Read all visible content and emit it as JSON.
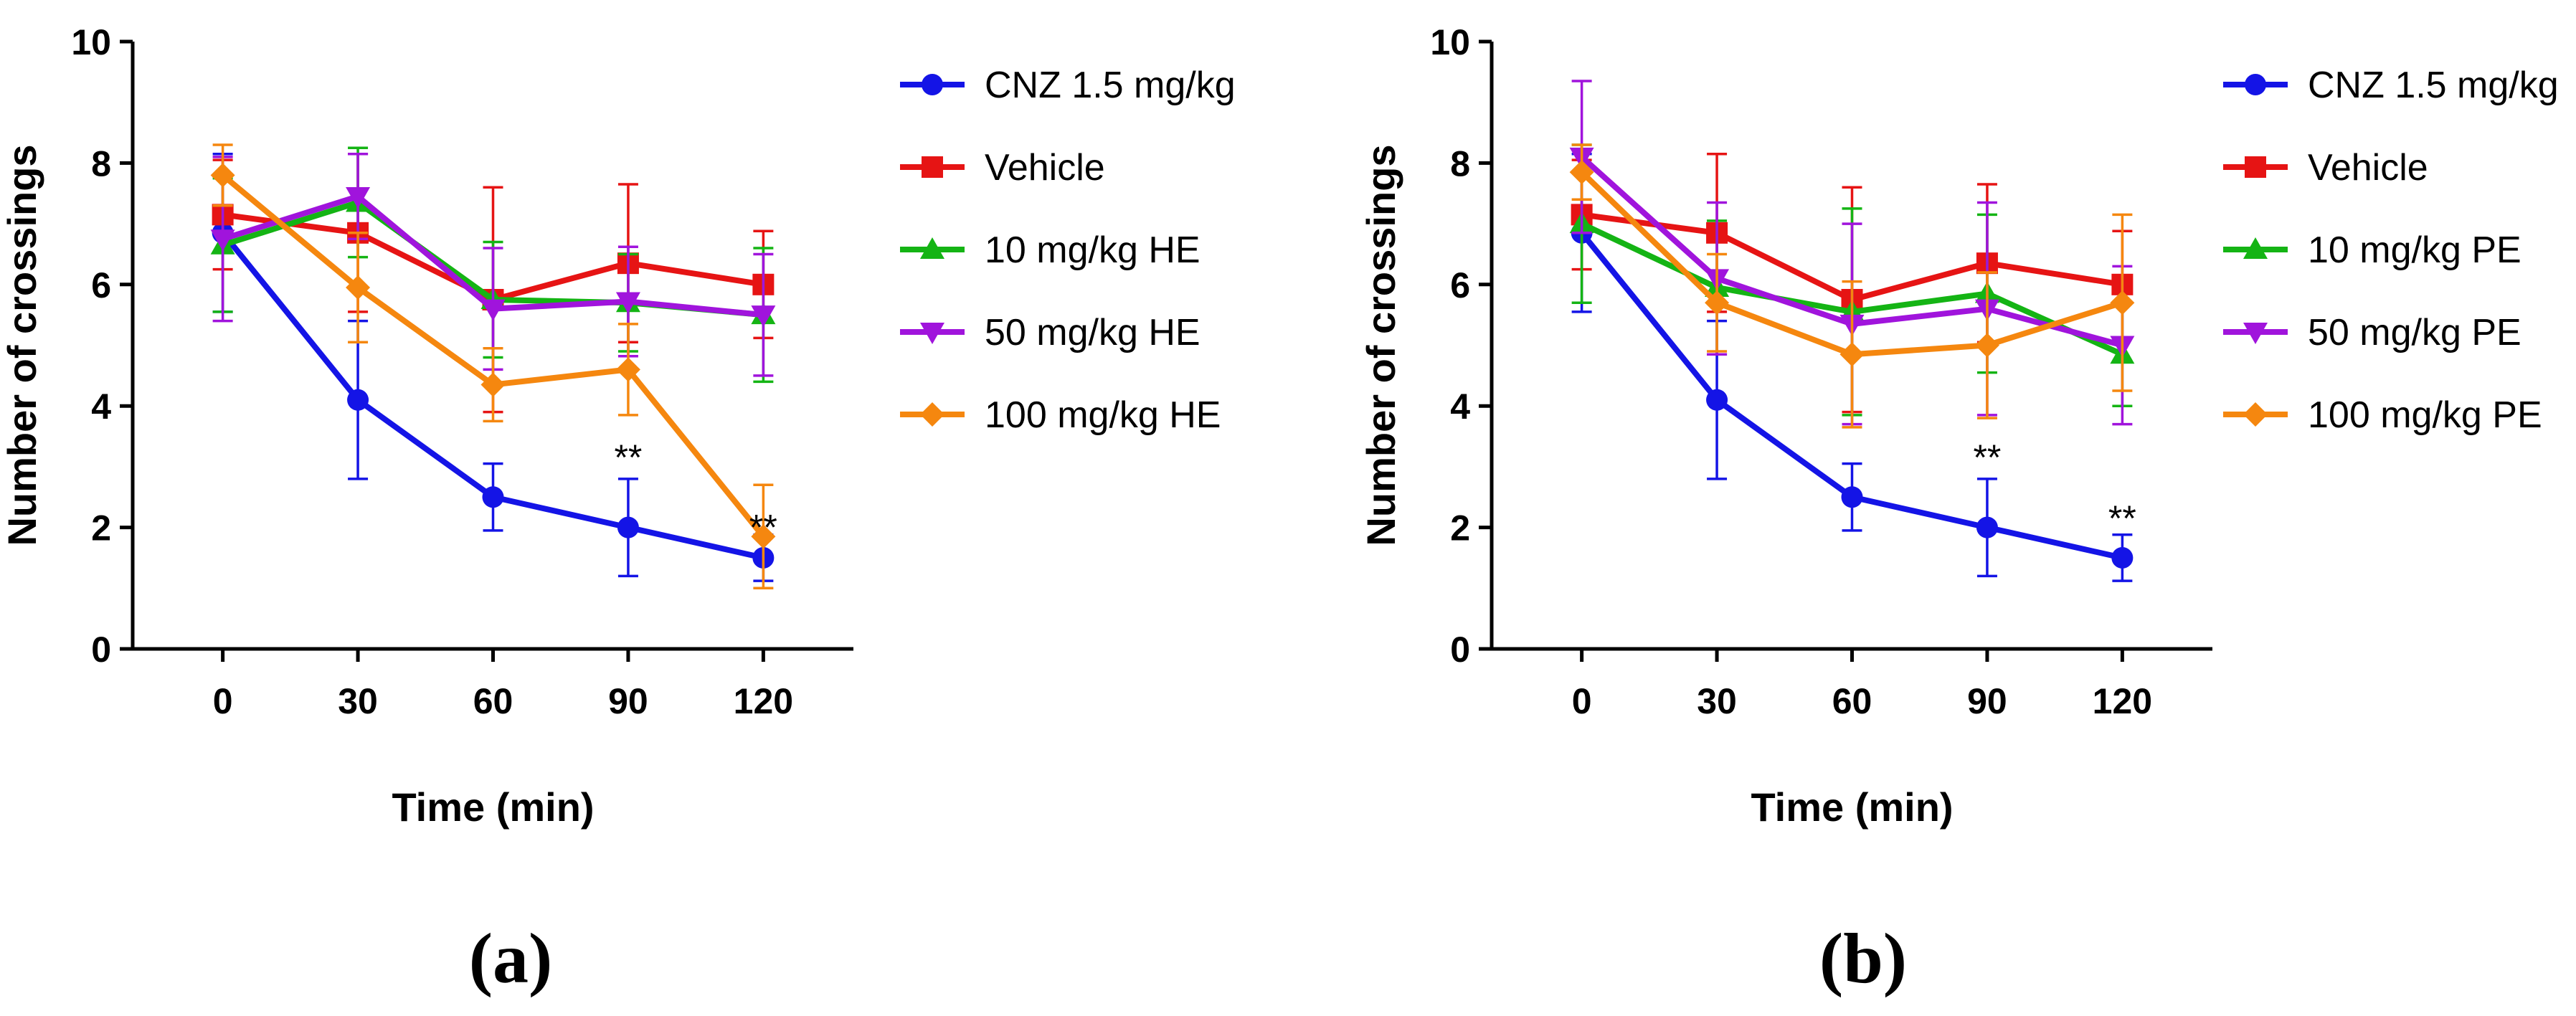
{
  "figure": {
    "panels": [
      {
        "label": "(a)"
      },
      {
        "label": "(b)"
      }
    ]
  },
  "chart_data": [
    {
      "type": "line",
      "panel_label": "(a)",
      "title": "",
      "xlabel": "Time (min)",
      "ylabel": "Number of crossings",
      "x": [
        0,
        30,
        60,
        90,
        120
      ],
      "x_ticks": [
        "0",
        "30",
        "60",
        "90",
        "120"
      ],
      "xlim": [
        -20,
        140
      ],
      "ylim": [
        0,
        10
      ],
      "y_ticks": [
        "0",
        "2",
        "4",
        "6",
        "8",
        "10"
      ],
      "grid": false,
      "legend": "right",
      "series": [
        {
          "name": "CNZ 1.5 mg/kg",
          "color": "#1414e6",
          "marker": "circle",
          "values": [
            6.85,
            4.1,
            2.5,
            2.0,
            1.5
          ],
          "errors": [
            1.3,
            1.3,
            0.55,
            0.8,
            0.38
          ]
        },
        {
          "name": "Vehicle",
          "color": "#e61414",
          "marker": "square",
          "values": [
            7.15,
            6.85,
            5.75,
            6.35,
            6.0
          ],
          "errors": [
            0.9,
            1.3,
            1.85,
            1.3,
            0.88
          ]
        },
        {
          "name": "10 mg/kg HE",
          "color": "#14b414",
          "marker": "triangle-up",
          "values": [
            6.65,
            7.35,
            5.75,
            5.7,
            5.5
          ],
          "errors": [
            1.1,
            0.9,
            0.95,
            0.8,
            1.1
          ]
        },
        {
          "name": "50 mg/kg HE",
          "color": "#a014dc",
          "marker": "triangle-down",
          "values": [
            6.75,
            7.45,
            5.6,
            5.72,
            5.5
          ],
          "errors": [
            1.35,
            0.7,
            1.0,
            0.9,
            1.0
          ]
        },
        {
          "name": "100 mg/kg HE",
          "color": "#f5870f",
          "marker": "diamond",
          "values": [
            7.8,
            5.95,
            4.35,
            4.6,
            1.85
          ],
          "errors": [
            0.5,
            0.9,
            0.6,
            0.75,
            0.85
          ]
        }
      ],
      "annotations": [
        {
          "x": 90,
          "y": 2.95,
          "text": "**"
        },
        {
          "x": 120,
          "y": 1.8,
          "text": "**"
        }
      ]
    },
    {
      "type": "line",
      "panel_label": "(b)",
      "title": "",
      "xlabel": "Time (min)",
      "ylabel": "Number of crossings",
      "x": [
        0,
        30,
        60,
        90,
        120
      ],
      "x_ticks": [
        "0",
        "30",
        "60",
        "90",
        "120"
      ],
      "xlim": [
        -20,
        140
      ],
      "ylim": [
        0,
        10
      ],
      "y_ticks": [
        "0",
        "2",
        "4",
        "6",
        "8",
        "10"
      ],
      "grid": false,
      "legend": "right",
      "series": [
        {
          "name": "CNZ 1.5 mg/kg",
          "color": "#1414e6",
          "marker": "circle",
          "values": [
            6.85,
            4.1,
            2.5,
            2.0,
            1.5
          ],
          "errors": [
            1.3,
            1.3,
            0.55,
            0.8,
            0.38
          ]
        },
        {
          "name": "Vehicle",
          "color": "#e61414",
          "marker": "square",
          "values": [
            7.15,
            6.85,
            5.75,
            6.35,
            6.0
          ],
          "errors": [
            0.9,
            1.3,
            1.85,
            1.3,
            0.88
          ]
        },
        {
          "name": "10 mg/kg PE",
          "color": "#14b414",
          "marker": "triangle-up",
          "values": [
            7.0,
            5.95,
            5.55,
            5.85,
            4.85
          ],
          "errors": [
            1.3,
            1.1,
            1.7,
            1.3,
            0.85
          ]
        },
        {
          "name": "50 mg/kg PE",
          "color": "#a014dc",
          "marker": "triangle-down",
          "values": [
            8.1,
            6.1,
            5.35,
            5.6,
            5.0
          ],
          "errors": [
            1.25,
            1.25,
            1.65,
            1.75,
            1.3
          ]
        },
        {
          "name": "100 mg/kg PE",
          "color": "#f5870f",
          "marker": "diamond",
          "values": [
            7.85,
            5.7,
            4.85,
            5.0,
            5.7
          ],
          "errors": [
            0.45,
            0.8,
            1.2,
            1.2,
            1.45
          ]
        }
      ],
      "annotations": [
        {
          "x": 90,
          "y": 2.95,
          "text": "**"
        },
        {
          "x": 120,
          "y": 1.95,
          "text": "**"
        }
      ]
    }
  ]
}
